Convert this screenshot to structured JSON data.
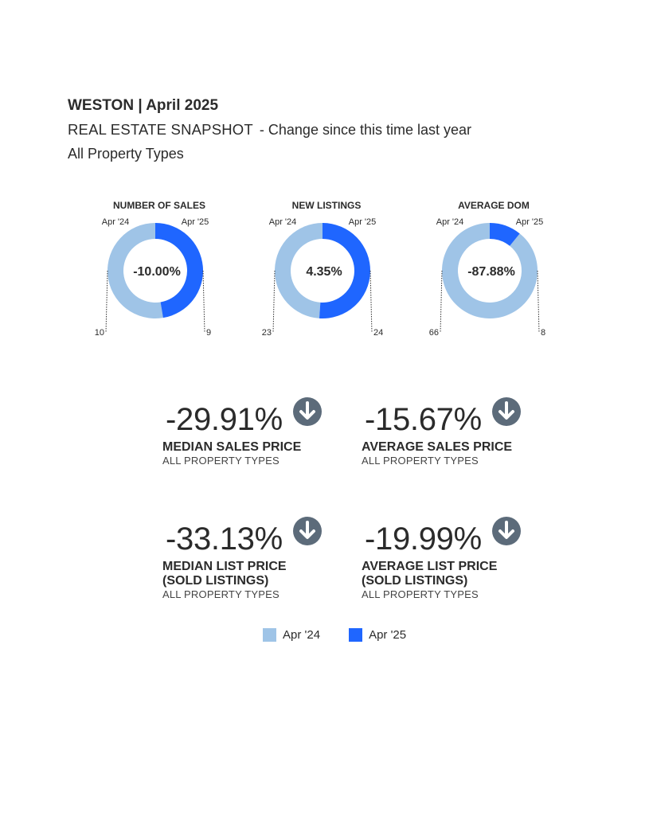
{
  "header": {
    "title": "WESTON | April 2025",
    "subhead": "REAL ESTATE SNAPSHOT",
    "change_note": "- Change since this time last year",
    "property_types": "All Property Types"
  },
  "colors": {
    "prior": "#9fc4e7",
    "current": "#1f66ff",
    "arrow": "#5c6b7a"
  },
  "chart_data": {
    "type": "pie",
    "charts": [
      {
        "title": "NUMBER OF SALES",
        "labels": [
          "Apr '24",
          "Apr '25"
        ],
        "values": [
          10,
          9
        ],
        "center_label": "-10.00%"
      },
      {
        "title": "NEW LISTINGS",
        "labels": [
          "Apr '24",
          "Apr '25"
        ],
        "values": [
          23,
          24
        ],
        "center_label": "4.35%"
      },
      {
        "title": "AVERAGE DOM",
        "labels": [
          "Apr '24",
          "Apr '25"
        ],
        "values": [
          66,
          8
        ],
        "center_label": "-87.88%"
      }
    ],
    "legend": [
      "Apr '24",
      "Apr '25"
    ]
  },
  "stats": [
    {
      "value": "-29.91%",
      "direction": "down",
      "label_1": "MEDIAN SALES PRICE",
      "label_2": "",
      "sub": "ALL PROPERTY TYPES"
    },
    {
      "value": "-15.67%",
      "direction": "down",
      "label_1": "AVERAGE SALES PRICE",
      "label_2": "",
      "sub": "ALL PROPERTY TYPES"
    },
    {
      "value": "-33.13%",
      "direction": "down",
      "label_1": "MEDIAN LIST PRICE",
      "label_2": "(SOLD LISTINGS)",
      "sub": "ALL PROPERTY TYPES"
    },
    {
      "value": "-19.99%",
      "direction": "down",
      "label_1": "AVERAGE LIST PRICE",
      "label_2": "(SOLD LISTINGS)",
      "sub": "ALL PROPERTY TYPES"
    }
  ],
  "legend": [
    {
      "label": "Apr '24",
      "icon": "light-blue-swatch"
    },
    {
      "label": "Apr '25",
      "icon": "blue-swatch"
    }
  ]
}
